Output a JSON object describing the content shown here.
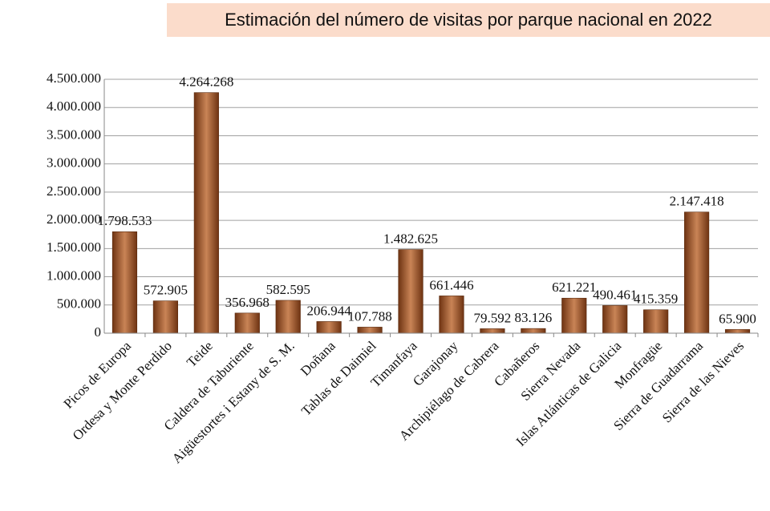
{
  "chart_data": {
    "type": "bar",
    "title": "Estimación del número de visitas por parque nacional en 2022",
    "categories": [
      "Picos de Europa",
      "Ordesa y Monte Perdido",
      "Teide",
      "Caldera de Taburiente",
      "Aigüestortes i Estany de S. M.",
      "Doñana",
      "Tablas de Daimiel",
      "Timanfaya",
      "Garajonay",
      "Archipiélago de Cabrera",
      "Cabañeros",
      "Sierra Nevada",
      "Islas Atlánticas de Galicia",
      "Monfragüe",
      "Sierra de Guadarrama",
      "Sierra de las Nieves"
    ],
    "values": [
      1798533,
      572905,
      4264268,
      356968,
      582595,
      206944,
      107788,
      1482625,
      661446,
      79592,
      83126,
      621221,
      490461,
      415359,
      2147418,
      65900
    ],
    "value_labels": [
      "1.798.533",
      "572.905",
      "4.264.268",
      "356.968",
      "582.595",
      "206.944",
      "107.788",
      "1.482.625",
      "661.446",
      "79.592",
      "83.126",
      "621.221",
      "490.461",
      "415.359",
      "2.147.418",
      "65.900"
    ],
    "color": "#c98456",
    "ylim": [
      0,
      4500000
    ],
    "yticks": [
      0,
      {
        "value": 500000,
        "label": "500.000"
      },
      {
        "value": 1000000,
        "label": "1.000.000"
      },
      {
        "value": 1500000,
        "label": "1.500.000"
      },
      {
        "value": 2000000,
        "label": "2.000.000"
      },
      {
        "value": 2500000,
        "label": "2.500.000"
      },
      {
        "value": 3000000,
        "label": "3.000.000"
      },
      {
        "value": 3500000,
        "label": "3.500.000"
      },
      {
        "value": 4000000,
        "label": "4.000.000"
      },
      {
        "value": 4500000,
        "label": "4.500.000"
      }
    ],
    "grid": true
  }
}
